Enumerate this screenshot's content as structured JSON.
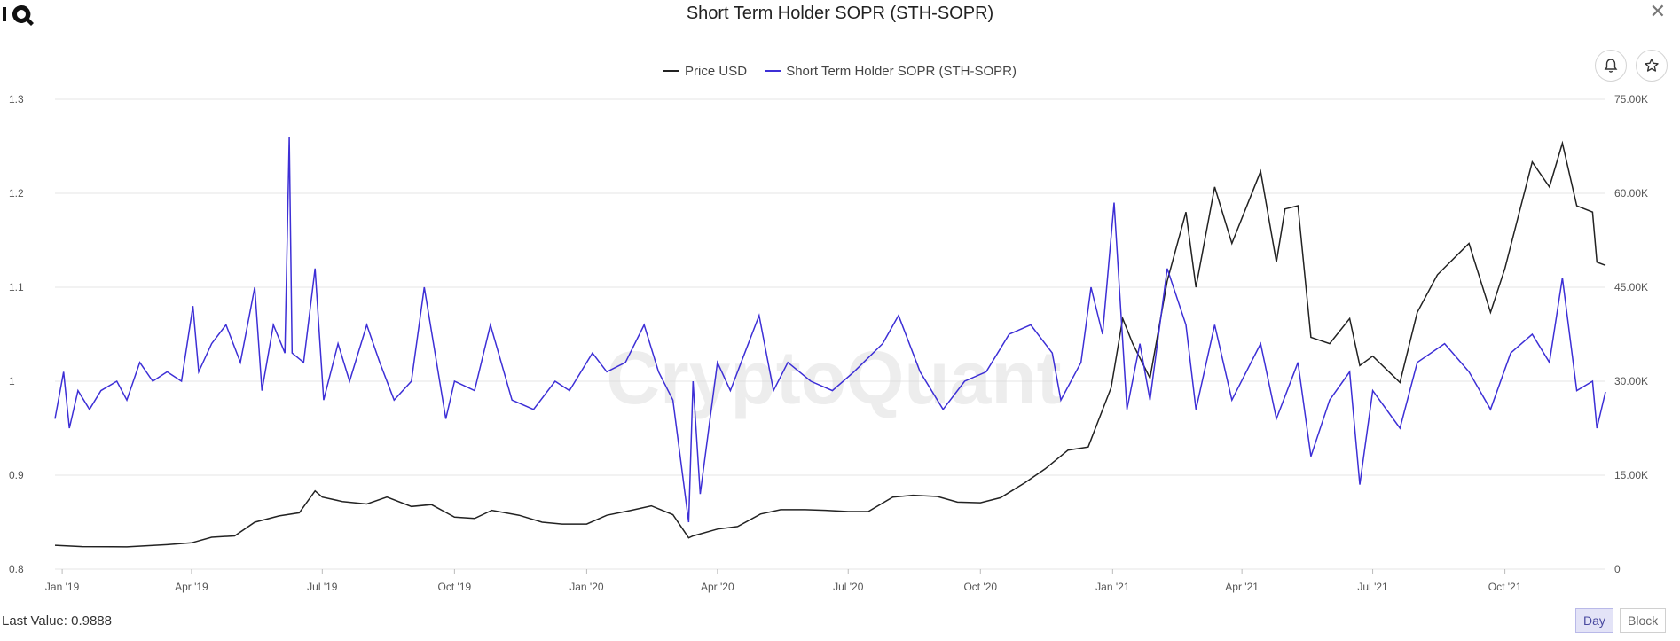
{
  "header": {
    "title": "Short Term Holder SOPR (STH-SOPR)"
  },
  "legend": {
    "price_label": "Price USD",
    "sopr_label": "Short Term Holder SOPR (STH-SOPR)"
  },
  "footer": {
    "last_value": "Last Value: 0.9888",
    "day_label": "Day",
    "block_label": "Block"
  },
  "watermark": "CryptoQuant",
  "colors": {
    "price": "#222222",
    "sopr": "#3d2fd6",
    "grid": "#e6e6e6"
  },
  "chart_data": {
    "type": "line",
    "title": "Short Term Holder SOPR (STH-SOPR)",
    "x_tick_labels": [
      "Jan '19",
      "Apr '19",
      "Jul '19",
      "Oct '19",
      "Jan '20",
      "Apr '20",
      "Jul '20",
      "Oct '20",
      "Jan '21",
      "Apr '21",
      "Jul '21",
      "Oct '21"
    ],
    "x_tick_dates": [
      "2019-01-01",
      "2019-04-01",
      "2019-07-01",
      "2019-10-01",
      "2020-01-01",
      "2020-04-01",
      "2020-07-01",
      "2020-10-01",
      "2021-01-01",
      "2021-04-01",
      "2021-07-01",
      "2021-10-01"
    ],
    "x_range": [
      "2018-12-27",
      "2021-12-10"
    ],
    "y_left": {
      "ticks": [
        "0.8",
        "0.9",
        "1",
        "1.1",
        "1.2",
        "1.3"
      ],
      "range": [
        0.8,
        1.3
      ]
    },
    "y_right": {
      "ticks": [
        "0",
        "15.00K",
        "30.00K",
        "45.00K",
        "60.00K",
        "75.00K"
      ],
      "range": [
        0,
        75000
      ]
    },
    "grid": true,
    "legend_position": "top-center",
    "series": [
      {
        "name": "Price USD",
        "axis": "right",
        "points": [
          [
            "2018-12-27",
            3800
          ],
          [
            "2019-01-15",
            3600
          ],
          [
            "2019-02-15",
            3550
          ],
          [
            "2019-03-15",
            3900
          ],
          [
            "2019-04-01",
            4200
          ],
          [
            "2019-04-15",
            5100
          ],
          [
            "2019-05-01",
            5300
          ],
          [
            "2019-05-15",
            7500
          ],
          [
            "2019-06-01",
            8500
          ],
          [
            "2019-06-15",
            9000
          ],
          [
            "2019-06-26",
            12500
          ],
          [
            "2019-07-01",
            11500
          ],
          [
            "2019-07-15",
            10800
          ],
          [
            "2019-08-01",
            10400
          ],
          [
            "2019-08-15",
            11500
          ],
          [
            "2019-09-01",
            10000
          ],
          [
            "2019-09-15",
            10300
          ],
          [
            "2019-10-01",
            8300
          ],
          [
            "2019-10-15",
            8100
          ],
          [
            "2019-10-27",
            9400
          ],
          [
            "2019-11-15",
            8600
          ],
          [
            "2019-12-01",
            7500
          ],
          [
            "2019-12-15",
            7200
          ],
          [
            "2020-01-01",
            7200
          ],
          [
            "2020-01-15",
            8600
          ],
          [
            "2020-02-01",
            9400
          ],
          [
            "2020-02-15",
            10100
          ],
          [
            "2020-03-01",
            8700
          ],
          [
            "2020-03-12",
            5000
          ],
          [
            "2020-03-15",
            5300
          ],
          [
            "2020-04-01",
            6400
          ],
          [
            "2020-04-15",
            6800
          ],
          [
            "2020-05-01",
            8800
          ],
          [
            "2020-05-15",
            9500
          ],
          [
            "2020-06-01",
            9500
          ],
          [
            "2020-06-15",
            9400
          ],
          [
            "2020-07-01",
            9200
          ],
          [
            "2020-07-15",
            9200
          ],
          [
            "2020-08-01",
            11500
          ],
          [
            "2020-08-15",
            11800
          ],
          [
            "2020-09-01",
            11600
          ],
          [
            "2020-09-15",
            10700
          ],
          [
            "2020-10-01",
            10600
          ],
          [
            "2020-10-15",
            11400
          ],
          [
            "2020-11-01",
            13800
          ],
          [
            "2020-11-15",
            16000
          ],
          [
            "2020-12-01",
            19000
          ],
          [
            "2020-12-15",
            19500
          ],
          [
            "2020-12-31",
            29000
          ],
          [
            "2021-01-08",
            40000
          ],
          [
            "2021-01-15",
            36000
          ],
          [
            "2021-01-27",
            30500
          ],
          [
            "2021-02-08",
            46000
          ],
          [
            "2021-02-21",
            57000
          ],
          [
            "2021-02-28",
            45000
          ],
          [
            "2021-03-13",
            61000
          ],
          [
            "2021-03-25",
            52000
          ],
          [
            "2021-04-14",
            63500
          ],
          [
            "2021-04-25",
            49000
          ],
          [
            "2021-05-01",
            57500
          ],
          [
            "2021-05-10",
            58000
          ],
          [
            "2021-05-19",
            37000
          ],
          [
            "2021-06-01",
            36000
          ],
          [
            "2021-06-15",
            40000
          ],
          [
            "2021-06-22",
            32500
          ],
          [
            "2021-07-01",
            34000
          ],
          [
            "2021-07-20",
            29800
          ],
          [
            "2021-08-01",
            41000
          ],
          [
            "2021-08-15",
            47000
          ],
          [
            "2021-09-06",
            52000
          ],
          [
            "2021-09-21",
            41000
          ],
          [
            "2021-10-01",
            48000
          ],
          [
            "2021-10-20",
            65000
          ],
          [
            "2021-11-01",
            61000
          ],
          [
            "2021-11-10",
            68000
          ],
          [
            "2021-11-20",
            58000
          ],
          [
            "2021-12-01",
            57000
          ],
          [
            "2021-12-04",
            49000
          ],
          [
            "2021-12-10",
            48500
          ]
        ]
      },
      {
        "name": "Short Term Holder SOPR (STH-SOPR)",
        "axis": "left",
        "points": [
          [
            "2018-12-27",
            0.96
          ],
          [
            "2019-01-02",
            1.01
          ],
          [
            "2019-01-06",
            0.95
          ],
          [
            "2019-01-12",
            0.99
          ],
          [
            "2019-01-20",
            0.97
          ],
          [
            "2019-01-28",
            0.99
          ],
          [
            "2019-02-08",
            1.0
          ],
          [
            "2019-02-15",
            0.98
          ],
          [
            "2019-02-24",
            1.02
          ],
          [
            "2019-03-05",
            1.0
          ],
          [
            "2019-03-15",
            1.01
          ],
          [
            "2019-03-25",
            1.0
          ],
          [
            "2019-04-02",
            1.08
          ],
          [
            "2019-04-06",
            1.01
          ],
          [
            "2019-04-15",
            1.04
          ],
          [
            "2019-04-25",
            1.06
          ],
          [
            "2019-05-05",
            1.02
          ],
          [
            "2019-05-15",
            1.1
          ],
          [
            "2019-05-20",
            0.99
          ],
          [
            "2019-05-28",
            1.06
          ],
          [
            "2019-06-05",
            1.03
          ],
          [
            "2019-06-08",
            1.26
          ],
          [
            "2019-06-10",
            1.03
          ],
          [
            "2019-06-18",
            1.02
          ],
          [
            "2019-06-26",
            1.12
          ],
          [
            "2019-07-02",
            0.98
          ],
          [
            "2019-07-12",
            1.04
          ],
          [
            "2019-07-20",
            1.0
          ],
          [
            "2019-08-01",
            1.06
          ],
          [
            "2019-08-10",
            1.02
          ],
          [
            "2019-08-20",
            0.98
          ],
          [
            "2019-09-01",
            1.0
          ],
          [
            "2019-09-10",
            1.1
          ],
          [
            "2019-09-25",
            0.96
          ],
          [
            "2019-10-01",
            1.0
          ],
          [
            "2019-10-15",
            0.99
          ],
          [
            "2019-10-26",
            1.06
          ],
          [
            "2019-11-10",
            0.98
          ],
          [
            "2019-11-25",
            0.97
          ],
          [
            "2019-12-10",
            1.0
          ],
          [
            "2019-12-20",
            0.99
          ],
          [
            "2020-01-05",
            1.03
          ],
          [
            "2020-01-15",
            1.01
          ],
          [
            "2020-01-28",
            1.02
          ],
          [
            "2020-02-10",
            1.06
          ],
          [
            "2020-02-20",
            1.01
          ],
          [
            "2020-03-01",
            0.98
          ],
          [
            "2020-03-12",
            0.85
          ],
          [
            "2020-03-15",
            1.0
          ],
          [
            "2020-03-20",
            0.88
          ],
          [
            "2020-04-01",
            1.02
          ],
          [
            "2020-04-10",
            0.99
          ],
          [
            "2020-04-20",
            1.03
          ],
          [
            "2020-04-30",
            1.07
          ],
          [
            "2020-05-10",
            0.99
          ],
          [
            "2020-05-20",
            1.02
          ],
          [
            "2020-06-05",
            1.0
          ],
          [
            "2020-06-20",
            0.99
          ],
          [
            "2020-07-05",
            1.01
          ],
          [
            "2020-07-25",
            1.04
          ],
          [
            "2020-08-05",
            1.07
          ],
          [
            "2020-08-20",
            1.01
          ],
          [
            "2020-09-05",
            0.97
          ],
          [
            "2020-09-20",
            1.0
          ],
          [
            "2020-10-05",
            1.01
          ],
          [
            "2020-10-21",
            1.05
          ],
          [
            "2020-11-05",
            1.06
          ],
          [
            "2020-11-20",
            1.03
          ],
          [
            "2020-11-26",
            0.98
          ],
          [
            "2020-12-10",
            1.02
          ],
          [
            "2020-12-17",
            1.1
          ],
          [
            "2020-12-25",
            1.05
          ],
          [
            "2021-01-02",
            1.19
          ],
          [
            "2021-01-11",
            0.97
          ],
          [
            "2021-01-20",
            1.04
          ],
          [
            "2021-01-27",
            0.98
          ],
          [
            "2021-02-08",
            1.12
          ],
          [
            "2021-02-21",
            1.06
          ],
          [
            "2021-02-28",
            0.97
          ],
          [
            "2021-03-13",
            1.06
          ],
          [
            "2021-03-25",
            0.98
          ],
          [
            "2021-04-14",
            1.04
          ],
          [
            "2021-04-25",
            0.96
          ],
          [
            "2021-05-10",
            1.02
          ],
          [
            "2021-05-19",
            0.92
          ],
          [
            "2021-06-01",
            0.98
          ],
          [
            "2021-06-15",
            1.01
          ],
          [
            "2021-06-22",
            0.89
          ],
          [
            "2021-07-01",
            0.99
          ],
          [
            "2021-07-20",
            0.95
          ],
          [
            "2021-08-01",
            1.02
          ],
          [
            "2021-08-20",
            1.04
          ],
          [
            "2021-09-06",
            1.01
          ],
          [
            "2021-09-21",
            0.97
          ],
          [
            "2021-10-05",
            1.03
          ],
          [
            "2021-10-20",
            1.05
          ],
          [
            "2021-11-01",
            1.02
          ],
          [
            "2021-11-10",
            1.11
          ],
          [
            "2021-11-20",
            0.99
          ],
          [
            "2021-12-01",
            1.0
          ],
          [
            "2021-12-04",
            0.95
          ],
          [
            "2021-12-10",
            0.9888
          ]
        ]
      }
    ]
  }
}
